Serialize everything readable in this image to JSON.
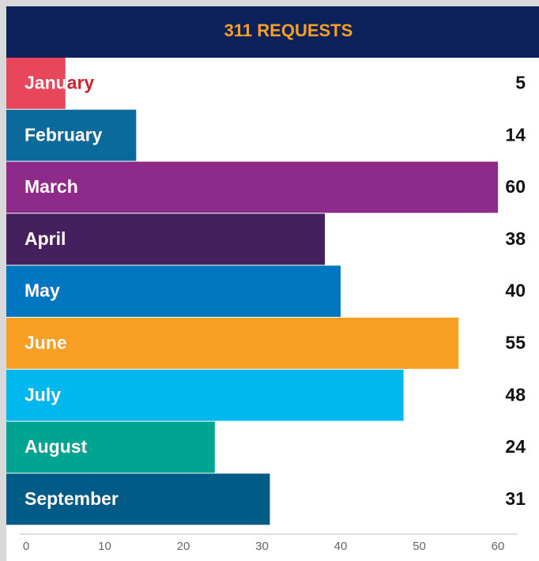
{
  "chart_data": {
    "type": "bar",
    "orientation": "horizontal",
    "title": "311 REQUESTS",
    "categories": [
      "January",
      "February",
      "March",
      "April",
      "May",
      "June",
      "July",
      "August",
      "September"
    ],
    "values": [
      5,
      14,
      60,
      38,
      40,
      55,
      48,
      24,
      31
    ],
    "colors": [
      "#e8465a",
      "#0a6a9c",
      "#8e2a8a",
      "#44215e",
      "#0077c0",
      "#f7a024",
      "#00b8ee",
      "#00a591",
      "#005b87"
    ],
    "xlim": [
      0,
      60
    ],
    "xticks": [
      0,
      10,
      20,
      30,
      40,
      50,
      60
    ],
    "grid": false
  }
}
